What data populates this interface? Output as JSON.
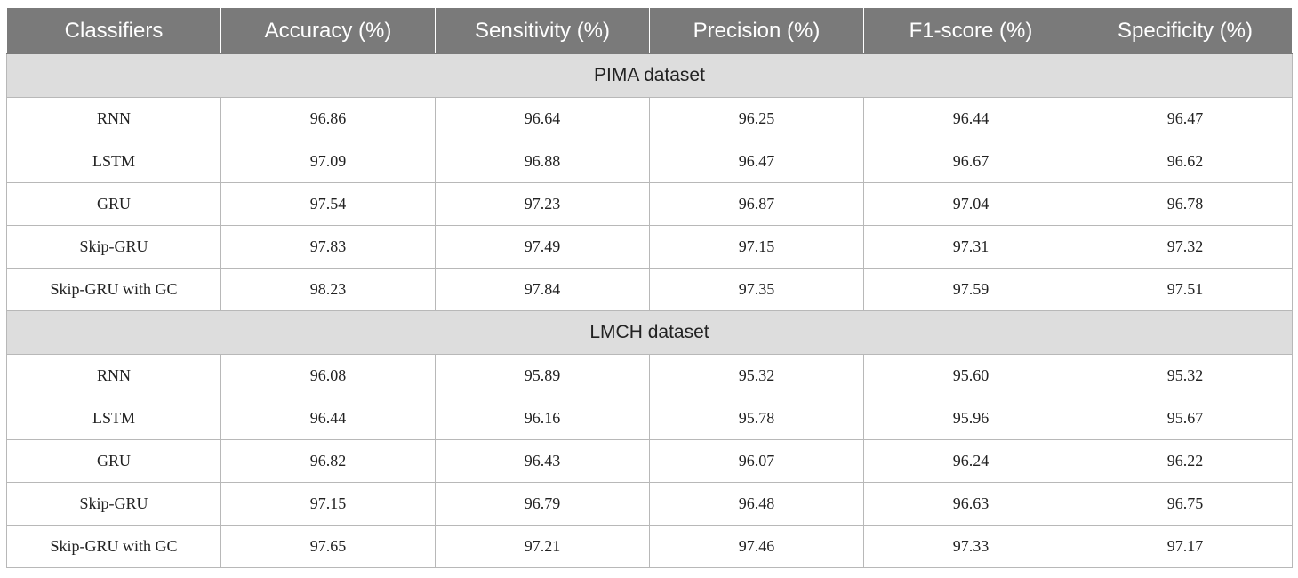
{
  "headers": [
    "Classifiers",
    "Accuracy (%)",
    "Sensitivity (%)",
    "Precision (%)",
    "F1-score (%)",
    "Specificity (%)"
  ],
  "sections": [
    {
      "title": "PIMA dataset",
      "rows": [
        [
          "RNN",
          "96.86",
          "96.64",
          "96.25",
          "96.44",
          "96.47"
        ],
        [
          "LSTM",
          "97.09",
          "96.88",
          "96.47",
          "96.67",
          "96.62"
        ],
        [
          "GRU",
          "97.54",
          "97.23",
          "96.87",
          "97.04",
          "96.78"
        ],
        [
          "Skip-GRU",
          "97.83",
          "97.49",
          "97.15",
          "97.31",
          "97.32"
        ],
        [
          "Skip-GRU with GC",
          "98.23",
          "97.84",
          "97.35",
          "97.59",
          "97.51"
        ]
      ]
    },
    {
      "title": "LMCH dataset",
      "rows": [
        [
          "RNN",
          "96.08",
          "95.89",
          "95.32",
          "95.60",
          "95.32"
        ],
        [
          "LSTM",
          "96.44",
          "96.16",
          "95.78",
          "95.96",
          "95.67"
        ],
        [
          "GRU",
          "96.82",
          "96.43",
          "96.07",
          "96.24",
          "96.22"
        ],
        [
          "Skip-GRU",
          "97.15",
          "96.79",
          "96.48",
          "96.63",
          "96.75"
        ],
        [
          "Skip-GRU with GC",
          "97.65",
          "97.21",
          "97.46",
          "97.33",
          "97.17"
        ]
      ]
    }
  ],
  "colors": {
    "header_bg": "#7a7a7a",
    "section_bg": "#dddddd",
    "border": "#b8b8b8"
  }
}
